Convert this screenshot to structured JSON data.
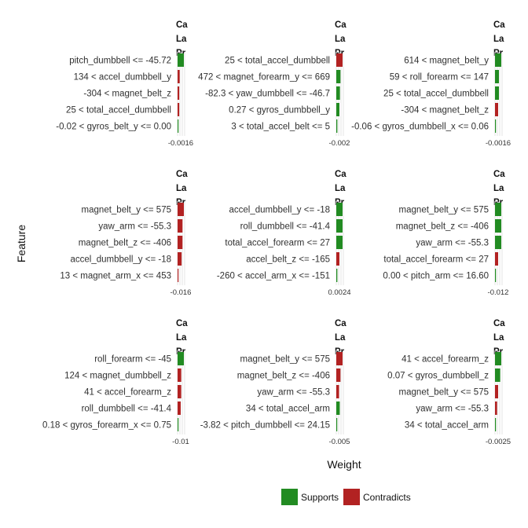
{
  "chart_data": {
    "type": "bar",
    "orientation": "horizontal",
    "layout": "faceted 3x3 grid",
    "xlabel": "Weight",
    "ylabel": "Feature",
    "legend": {
      "placement": "bottom",
      "items": [
        {
          "label": "Supports",
          "color": "#228B22"
        },
        {
          "label": "Contradicts",
          "color": "#B22222"
        }
      ]
    },
    "panels": [
      {
        "header": [
          "Ca",
          "La",
          "Pr"
        ],
        "xtick_text": "-0.0016",
        "features": [
          {
            "label": "pitch_dumbbell <= -45.72",
            "weight": 0.015
          },
          {
            "label": "134 < accel_dumbbell_y",
            "weight": -0.005
          },
          {
            "label": "-304 < magnet_belt_z",
            "weight": -0.004
          },
          {
            "label": "25 < total_accel_dumbbell",
            "weight": -0.004
          },
          {
            "label": "-0.02 < gyros_belt_y <= 0.00",
            "weight": 0.0
          }
        ]
      },
      {
        "header": [
          "Ca",
          "La",
          "Pr"
        ],
        "xtick_text": "-0.002",
        "features": [
          {
            "label": "25 < total_accel_dumbbell",
            "weight": -0.012
          },
          {
            "label": "472 < magnet_forearm_y <= 669",
            "weight": 0.008
          },
          {
            "label": "-82.3 < yaw_dumbbell <= -46.7",
            "weight": 0.007
          },
          {
            "label": "0.27 < gyros_dumbbell_y",
            "weight": 0.006
          },
          {
            "label": "3 < total_accel_belt <= 5",
            "weight": 0.002
          }
        ]
      },
      {
        "header": [
          "Ca",
          "La",
          "Pr"
        ],
        "xtick_text": "-0.0016",
        "features": [
          {
            "label": "614 < magnet_belt_y",
            "weight": 0.008
          },
          {
            "label": "59 < roll_forearm <= 147",
            "weight": 0.005
          },
          {
            "label": "25 < total_accel_dumbbell",
            "weight": 0.005
          },
          {
            "label": "-304 < magnet_belt_z",
            "weight": -0.004
          },
          {
            "label": "-0.06 < gyros_dumbbell_x <= 0.06",
            "weight": 0.001
          }
        ]
      },
      {
        "header": [
          "Ca",
          "La",
          "Pr"
        ],
        "xtick_text": "-0.016",
        "features": [
          {
            "label": "magnet_belt_y <= 575",
            "weight": -0.014
          },
          {
            "label": "yaw_arm <= -55.3",
            "weight": -0.011
          },
          {
            "label": "magnet_belt_z <= -406",
            "weight": -0.011
          },
          {
            "label": "accel_dumbbell_y <= -18",
            "weight": -0.009
          },
          {
            "label": "13 < magnet_arm_x <= 453",
            "weight": -0.002
          }
        ]
      },
      {
        "header": [
          "Ca",
          "La",
          "Pr"
        ],
        "xtick_text": "0.0024",
        "features": [
          {
            "label": "accel_dumbbell_y <= -18",
            "weight": 0.006
          },
          {
            "label": "roll_dumbbell <= -41.4",
            "weight": 0.006
          },
          {
            "label": "total_accel_forearm <= 27",
            "weight": 0.006
          },
          {
            "label": "accel_belt_z <= -165",
            "weight": -0.003
          },
          {
            "label": "-260 < accel_arm_x <= -151",
            "weight": 0.001
          }
        ]
      },
      {
        "header": [
          "Ca",
          "La",
          "Pr"
        ],
        "xtick_text": "-0.012",
        "features": [
          {
            "label": "magnet_belt_y <= 575",
            "weight": 0.008
          },
          {
            "label": "magnet_belt_z <= -406",
            "weight": 0.008
          },
          {
            "label": "yaw_arm <= -55.3",
            "weight": 0.008
          },
          {
            "label": "total_accel_forearm <= 27",
            "weight": -0.004
          },
          {
            "label": "0.00 < pitch_arm <= 16.60",
            "weight": 0.0
          }
        ]
      },
      {
        "header": [
          "Ca",
          "La",
          "Pr"
        ],
        "xtick_text": "-0.01",
        "features": [
          {
            "label": "roll_forearm <= -45",
            "weight": 0.012
          },
          {
            "label": "124 < magnet_dumbbell_z",
            "weight": -0.007
          },
          {
            "label": "41 < accel_forearm_z",
            "weight": -0.007
          },
          {
            "label": "roll_dumbbell <= -41.4",
            "weight": -0.006
          },
          {
            "label": "0.18 < gyros_forearm_x <= 0.75",
            "weight": 0.0
          }
        ]
      },
      {
        "header": [
          "Ca",
          "La",
          "Pr"
        ],
        "xtick_text": "-0.005",
        "features": [
          {
            "label": "magnet_belt_y <= 575",
            "weight": -0.009
          },
          {
            "label": "magnet_belt_z <= -406",
            "weight": -0.006
          },
          {
            "label": "yaw_arm <= -55.3",
            "weight": -0.004
          },
          {
            "label": "34 < total_accel_arm",
            "weight": 0.005
          },
          {
            "label": "-3.82 < pitch_dumbbell <= 24.15",
            "weight": 0.001
          }
        ]
      },
      {
        "header": [
          "Ca",
          "La",
          "Pr"
        ],
        "xtick_text": "-0.0025",
        "features": [
          {
            "label": "41 < accel_forearm_z",
            "weight": 0.006
          },
          {
            "label": "0.07 < gyros_dumbbell_z",
            "weight": 0.005
          },
          {
            "label": "magnet_belt_y <= 575",
            "weight": -0.003
          },
          {
            "label": "yaw_arm <= -55.3",
            "weight": -0.002
          },
          {
            "label": "34 < total_accel_arm",
            "weight": 0.0
          }
        ]
      }
    ]
  }
}
